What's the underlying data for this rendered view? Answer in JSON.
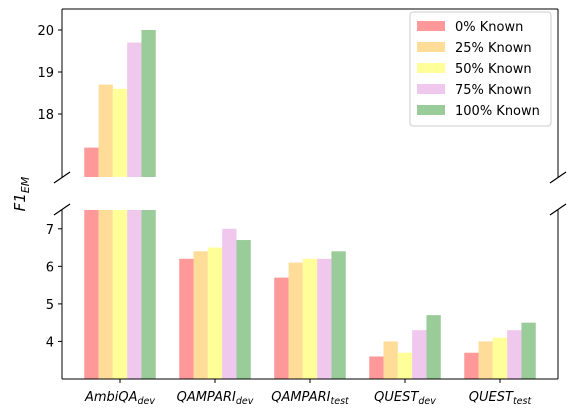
{
  "chart_data": {
    "type": "bar",
    "ylabel_base": "F1",
    "ylabel_sub": "EM",
    "broken_axis": true,
    "categories": [
      {
        "base": "AmbiQA",
        "sub": "dev"
      },
      {
        "base": "QAMPARI",
        "sub": "dev"
      },
      {
        "base": "QAMPARI",
        "sub": "test"
      },
      {
        "base": "QUEST",
        "sub": "dev"
      },
      {
        "base": "QUEST",
        "sub": "test"
      }
    ],
    "series": [
      {
        "name": "0% Known",
        "color": "#ff9999",
        "values": [
          17.2,
          6.2,
          5.7,
          3.6,
          3.7
        ]
      },
      {
        "name": "25% Known",
        "color": "#ffdd99",
        "values": [
          18.7,
          6.4,
          6.1,
          4.0,
          4.0
        ]
      },
      {
        "name": "50% Known",
        "color": "#ffff99",
        "values": [
          18.6,
          6.5,
          6.2,
          3.7,
          4.1
        ]
      },
      {
        "name": "75% Known",
        "color": "#f0c8ee",
        "values": [
          19.7,
          7.0,
          6.2,
          4.3,
          4.3
        ]
      },
      {
        "name": "100% Known",
        "color": "#99cc99",
        "values": [
          20.0,
          6.7,
          6.4,
          4.7,
          4.5
        ]
      }
    ],
    "upper_ylim": [
      16.5,
      20.5
    ],
    "lower_ylim": [
      3.0,
      7.5
    ],
    "upper_yticks": [
      18,
      19,
      20
    ],
    "lower_yticks": [
      4,
      5,
      6,
      7
    ],
    "legend_position": "top-right",
    "grid": false
  }
}
